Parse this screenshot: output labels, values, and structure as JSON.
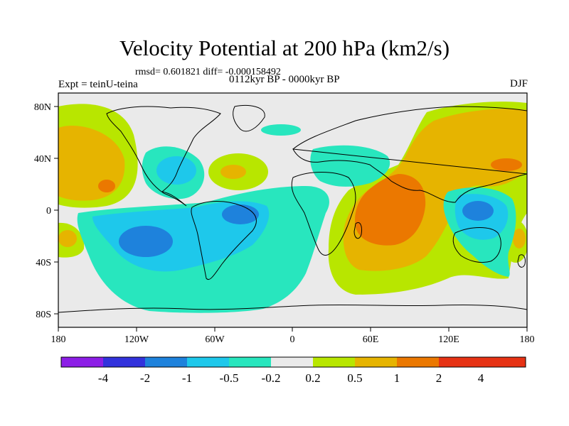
{
  "figure": {
    "title": "Velocity Potential at 200 hPa (km2/s)",
    "stats": "rmsd= 0.601821 diff= -0.000158492",
    "experiment": "Expt = teinU-teina",
    "period": "0112kyr BP - 0000kyr BP",
    "season": "DJF"
  },
  "axes": {
    "x_ticks": [
      "180",
      "120W",
      "60W",
      "0",
      "60E",
      "120E",
      "180"
    ],
    "y_ticks": [
      "80N",
      "40N",
      "0",
      "40S",
      "80S"
    ]
  },
  "colorbar": {
    "labels": [
      "-4",
      "-2",
      "-1",
      "-0.5",
      "-0.2",
      "0.2",
      "0.5",
      "1",
      "2",
      "4"
    ],
    "colors": [
      "#8c1ee6",
      "#3232dc",
      "#1e82dc",
      "#1ec8eb",
      "#28e6be",
      "#eaeaea",
      "#b8e600",
      "#e6b400",
      "#eb7800",
      "#e63214"
    ]
  },
  "colors": {
    "neutral": "#eaeaea",
    "light_green": "#b8e600",
    "yellow_orange": "#e6b400",
    "orange": "#eb7800",
    "cyan": "#1ec8eb",
    "teal": "#28e6be",
    "blue": "#1e82dc"
  }
}
